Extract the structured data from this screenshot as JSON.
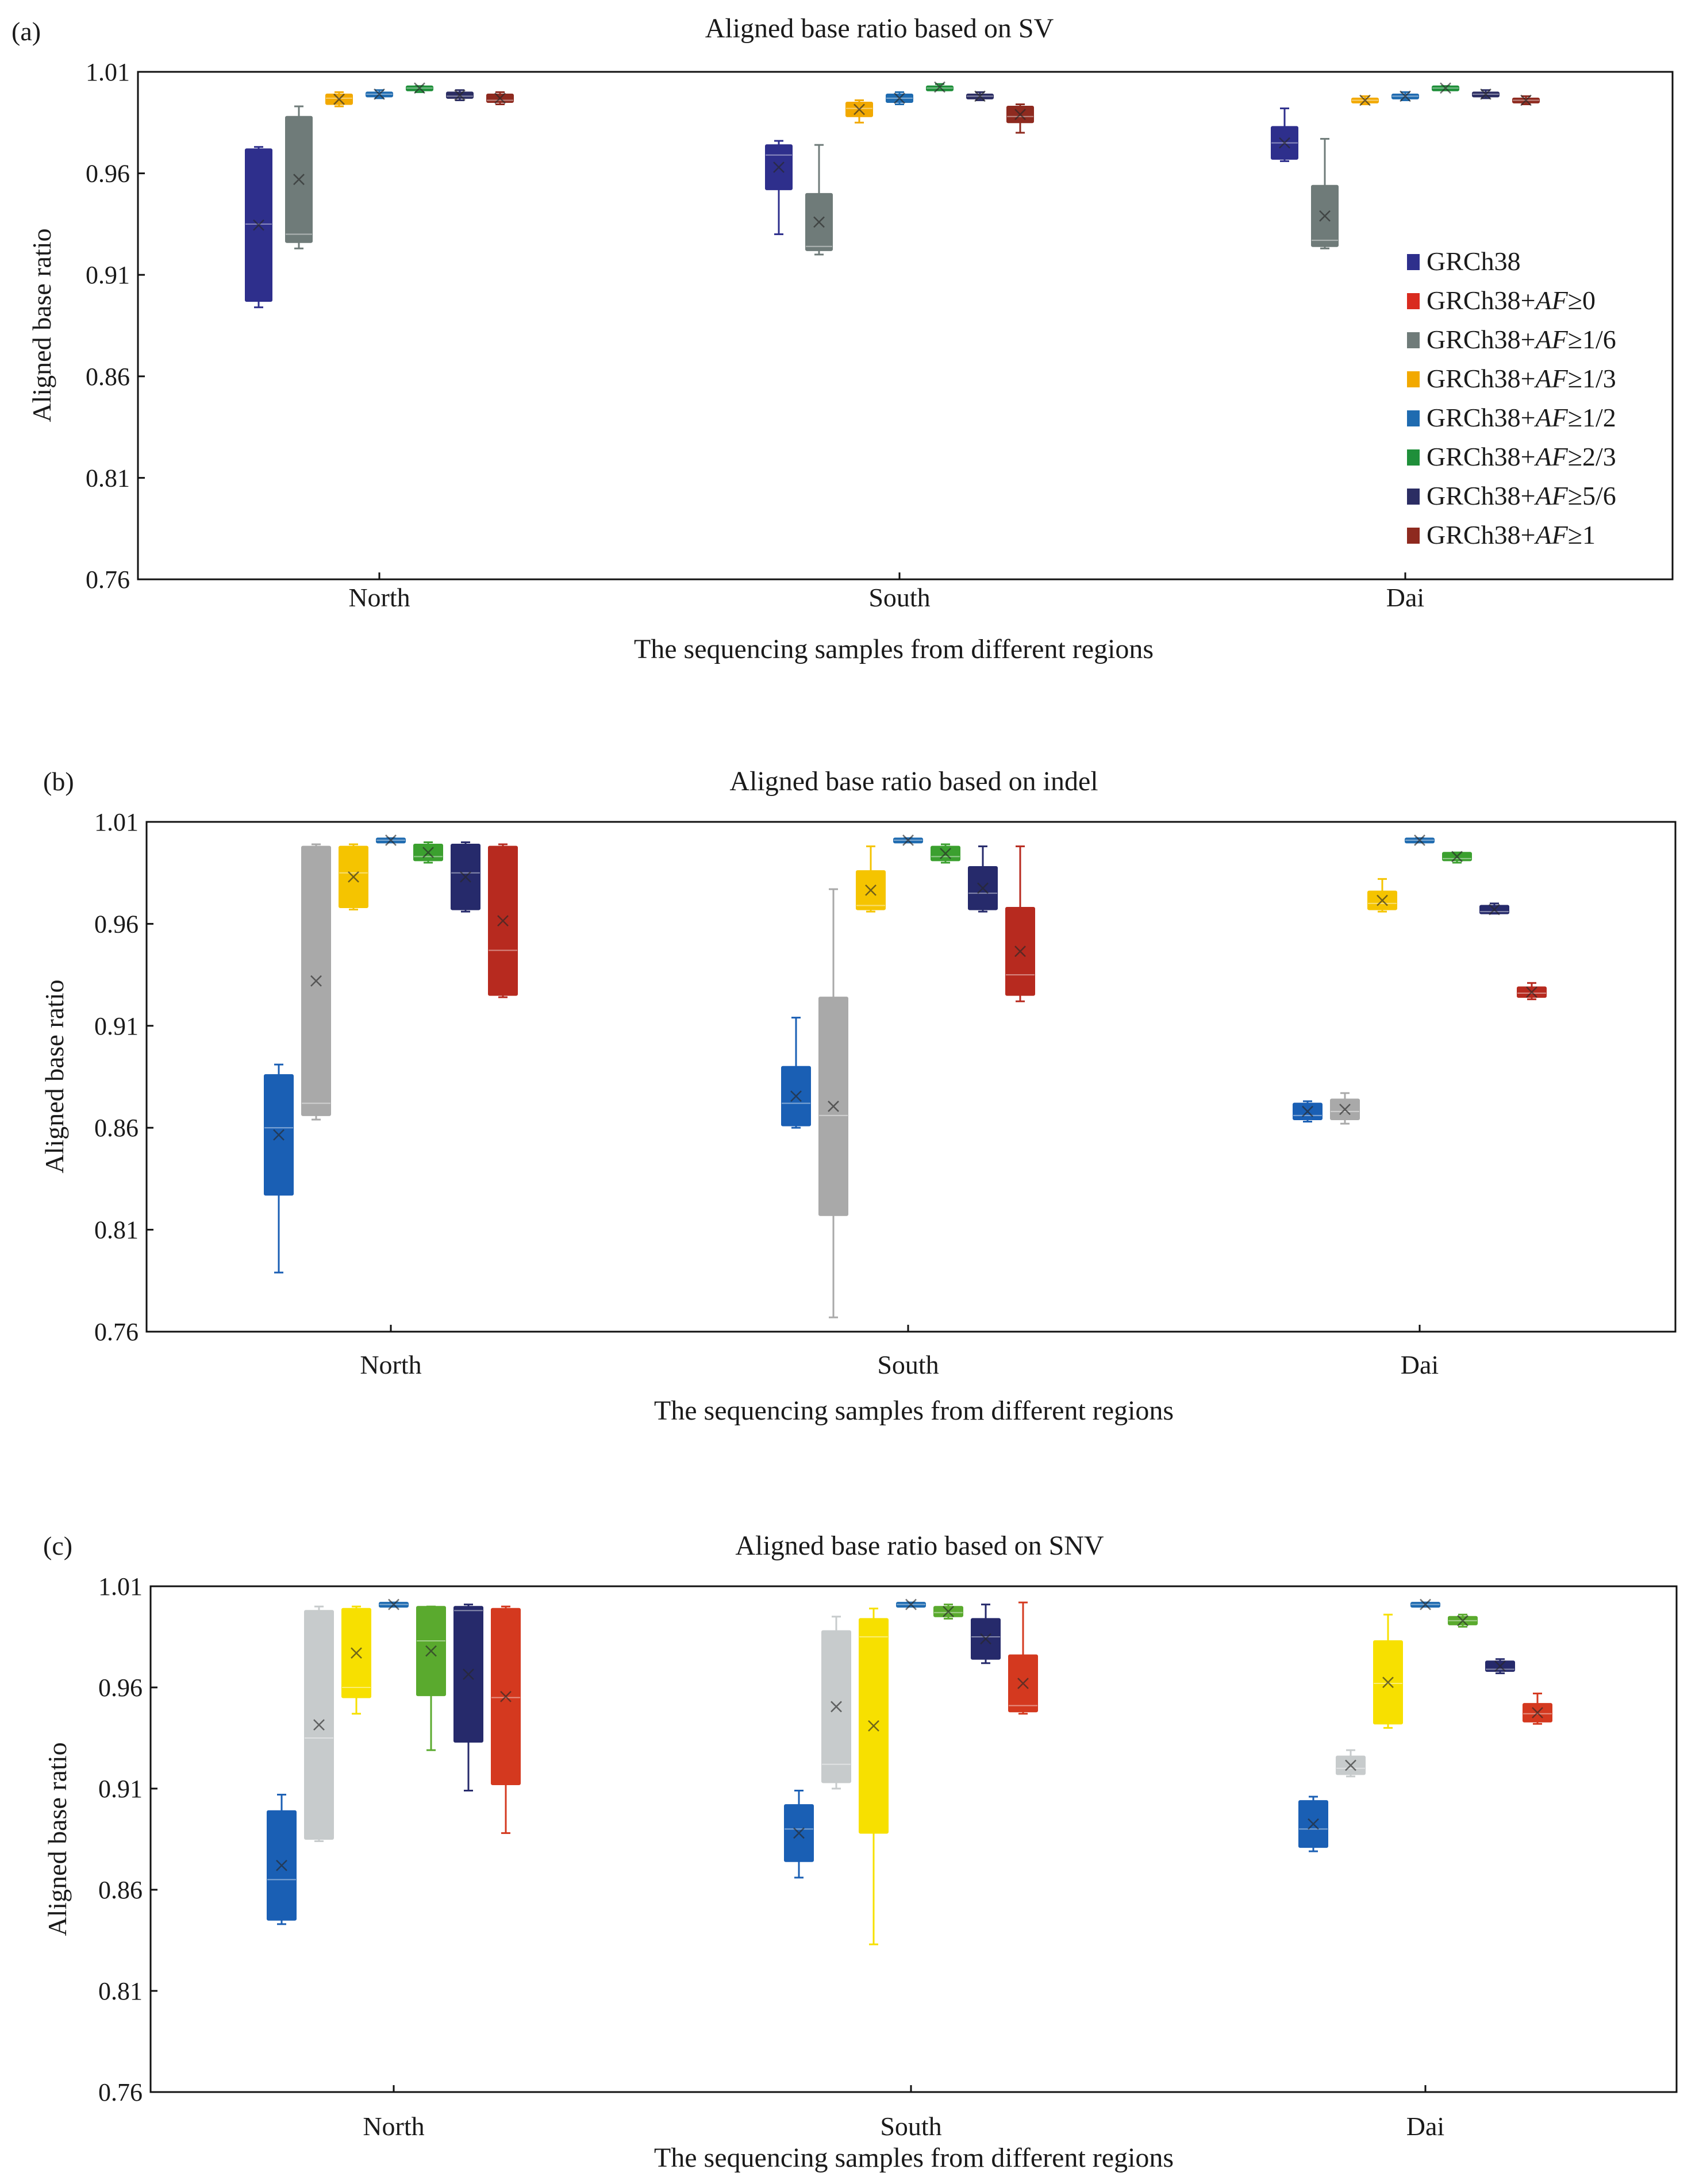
{
  "legend": [
    {
      "prefix": "GRCh38",
      "af": "",
      "thr": "",
      "color": "#2e2f8c"
    },
    {
      "prefix": "GRCh38+",
      "af": "AF",
      "thr": "≥0",
      "color": "#d92b1f"
    },
    {
      "prefix": "GRCh38+",
      "af": "AF",
      "thr": "≥1/6",
      "color": "#6f7b79"
    },
    {
      "prefix": "GRCh38+",
      "af": "AF",
      "thr": "≥1/3",
      "color": "#f2a900"
    },
    {
      "prefix": "GRCh38+",
      "af": "AF",
      "thr": "≥1/2",
      "color": "#1f6bb0"
    },
    {
      "prefix": "GRCh38+",
      "af": "AF",
      "thr": "≥2/3",
      "color": "#1f8f3a"
    },
    {
      "prefix": "GRCh38+",
      "af": "AF",
      "thr": "≥5/6",
      "color": "#2b2d63"
    },
    {
      "prefix": "GRCh38+",
      "af": "AF",
      "thr": "≥1",
      "color": "#8e2a1f"
    }
  ],
  "chart_data": [
    {
      "type": "box",
      "panel": "(a)",
      "title": "Aligned base ratio based on SV",
      "xlabel": "The sequencing samples from different regions",
      "ylabel": "Aligned base ratio",
      "ylim": [
        0.76,
        1.01
      ],
      "yticks": [
        "0.76",
        "0.81",
        "0.86",
        "0.91",
        "0.96",
        "1.01"
      ],
      "categories": [
        "North",
        "South",
        "Dai"
      ],
      "series": [
        {
          "name": "GRCh38",
          "color": "#2e2f8c",
          "boxes": [
            [
              0.894,
              0.897,
              0.935,
              0.972,
              0.973
            ],
            [
              0.93,
              0.952,
              0.969,
              0.974,
              0.976
            ],
            [
              0.966,
              0.967,
              0.975,
              0.983,
              0.992
            ]
          ]
        },
        {
          "name": "GRCh38+AF≥1/6",
          "color": "#6f7b79",
          "boxes": [
            [
              0.923,
              0.926,
              0.93,
              0.988,
              0.993
            ],
            [
              0.92,
              0.922,
              0.924,
              0.95,
              0.974
            ],
            [
              0.923,
              0.924,
              0.927,
              0.954,
              0.977
            ]
          ]
        },
        {
          "name": "GRCh38+AF≥1/3",
          "color": "#f2a900",
          "boxes": [
            [
              0.993,
              0.994,
              0.997,
              0.999,
              1.0
            ],
            [
              0.985,
              0.988,
              0.992,
              0.995,
              0.996
            ],
            [
              0.994,
              0.995,
              0.996,
              0.997,
              0.998
            ]
          ]
        },
        {
          "name": "GRCh38+AF≥1/2",
          "color": "#1f6bb0",
          "boxes": [
            [
              0.997,
              0.998,
              0.999,
              1.0,
              1.001
            ],
            [
              0.994,
              0.995,
              0.997,
              0.999,
              1.0
            ],
            [
              0.996,
              0.997,
              0.998,
              0.999,
              1.0
            ]
          ]
        },
        {
          "name": "GRCh38+AF≥2/3",
          "color": "#1f8f3a",
          "boxes": [
            [
              1.0,
              1.001,
              1.002,
              1.003,
              1.003
            ],
            [
              1.001,
              1.002,
              1.002,
              1.003,
              1.004
            ],
            [
              1.001,
              1.001,
              1.002,
              1.003,
              1.003
            ]
          ]
        },
        {
          "name": "GRCh38+AF≥5/6",
          "color": "#2b2d63",
          "boxes": [
            [
              0.996,
              0.997,
              0.998,
              1.0,
              1.001
            ],
            [
              0.996,
              0.997,
              0.998,
              0.999,
              1.0
            ],
            [
              0.997,
              0.998,
              0.999,
              1.0,
              1.001
            ]
          ]
        },
        {
          "name": "GRCh38+AF≥1",
          "color": "#8e2a1f",
          "boxes": [
            [
              0.994,
              0.995,
              0.996,
              0.999,
              1.0
            ],
            [
              0.98,
              0.985,
              0.988,
              0.993,
              0.994
            ],
            [
              0.994,
              0.995,
              0.996,
              0.997,
              0.998
            ]
          ]
        }
      ]
    },
    {
      "type": "box",
      "panel": "(b)",
      "title": "Aligned base ratio based on indel",
      "xlabel": "The sequencing samples from different regions",
      "ylabel": "Aligned base ratio",
      "ylim": [
        0.76,
        1.01
      ],
      "yticks": [
        "0.76",
        "0.81",
        "0.86",
        "0.91",
        "0.96",
        "1.01"
      ],
      "categories": [
        "North",
        "South",
        "Dai"
      ],
      "series": [
        {
          "name": "GRCh38",
          "color": "#1a5fb4",
          "boxes": [
            [
              0.789,
              0.827,
              0.86,
              0.886,
              0.891
            ],
            [
              0.86,
              0.861,
              0.872,
              0.89,
              0.914
            ],
            [
              0.863,
              0.864,
              0.866,
              0.872,
              0.873
            ]
          ]
        },
        {
          "name": "GRCh38+AF≥1/6",
          "color": "#a9a9a9",
          "boxes": [
            [
              0.864,
              0.866,
              0.872,
              0.998,
              0.999
            ],
            [
              0.767,
              0.817,
              0.866,
              0.924,
              0.977
            ],
            [
              0.862,
              0.864,
              0.868,
              0.874,
              0.877
            ]
          ]
        },
        {
          "name": "GRCh38+AF≥1/3",
          "color": "#f5c400",
          "boxes": [
            [
              0.967,
              0.968,
              0.985,
              0.998,
              0.999
            ],
            [
              0.966,
              0.967,
              0.969,
              0.986,
              0.998
            ],
            [
              0.966,
              0.967,
              0.97,
              0.976,
              0.982
            ]
          ]
        },
        {
          "name": "GRCh38+AF≥1/2",
          "color": "#1f6bb0",
          "boxes": [
            [
              1.0,
              1.0,
              1.001,
              1.002,
              1.002
            ],
            [
              1.0,
              1.0,
              1.001,
              1.002,
              1.002
            ],
            [
              1.0,
              1.0,
              1.001,
              1.002,
              1.002
            ]
          ]
        },
        {
          "name": "GRCh38+AF≥2/3",
          "color": "#3ba02f",
          "boxes": [
            [
              0.99,
              0.991,
              0.993,
              0.999,
              1.0
            ],
            [
              0.99,
              0.991,
              0.993,
              0.998,
              0.999
            ],
            [
              0.99,
              0.991,
              0.992,
              0.995,
              0.995
            ]
          ]
        },
        {
          "name": "GRCh38+AF≥5/6",
          "color": "#262a6b",
          "boxes": [
            [
              0.966,
              0.967,
              0.985,
              0.999,
              1.0
            ],
            [
              0.966,
              0.967,
              0.975,
              0.988,
              0.998
            ],
            [
              0.965,
              0.965,
              0.966,
              0.969,
              0.97
            ]
          ]
        },
        {
          "name": "GRCh38+AF≥1",
          "color": "#b72a1f",
          "boxes": [
            [
              0.924,
              0.925,
              0.947,
              0.998,
              0.999
            ],
            [
              0.922,
              0.925,
              0.935,
              0.968,
              0.998
            ],
            [
              0.923,
              0.924,
              0.926,
              0.929,
              0.931
            ]
          ]
        }
      ]
    },
    {
      "type": "box",
      "panel": "(c)",
      "title": "Aligned base ratio based on SNV",
      "xlabel": "The sequencing samples from different regions",
      "ylabel": "Aligned base ratio",
      "ylim": [
        0.76,
        1.01
      ],
      "yticks": [
        "0.76",
        "0.81",
        "0.86",
        "0.91",
        "0.96",
        "1.01"
      ],
      "categories": [
        "North",
        "South",
        "Dai"
      ],
      "series": [
        {
          "name": "GRCh38",
          "color": "#1a5fb4",
          "boxes": [
            [
              0.843,
              0.845,
              0.865,
              0.899,
              0.907
            ],
            [
              0.866,
              0.874,
              0.89,
              0.902,
              0.909
            ],
            [
              0.879,
              0.881,
              0.89,
              0.904,
              0.906
            ]
          ]
        },
        {
          "name": "GRCh38+AF≥1/6",
          "color": "#c7cbcc",
          "boxes": [
            [
              0.884,
              0.885,
              0.935,
              0.998,
              1.0
            ],
            [
              0.91,
              0.913,
              0.922,
              0.988,
              0.995
            ],
            [
              0.916,
              0.917,
              0.92,
              0.926,
              0.929
            ]
          ]
        },
        {
          "name": "GRCh38+AF≥1/3",
          "color": "#f7e000",
          "boxes": [
            [
              0.947,
              0.955,
              0.96,
              0.999,
              1.0
            ],
            [
              0.833,
              0.888,
              0.985,
              0.994,
              0.999
            ],
            [
              0.94,
              0.942,
              0.962,
              0.983,
              0.996
            ]
          ]
        },
        {
          "name": "GRCh38+AF≥1/2",
          "color": "#1f6bb0",
          "boxes": [
            [
              1.0,
              1.0,
              1.001,
              1.002,
              1.002
            ],
            [
              1.0,
              1.0,
              1.001,
              1.002,
              1.002
            ],
            [
              1.0,
              1.0,
              1.001,
              1.002,
              1.002
            ]
          ]
        },
        {
          "name": "GRCh38+AF≥2/3",
          "color": "#5aaa2e",
          "boxes": [
            [
              0.929,
              0.956,
              0.983,
              1.0,
              1.0
            ],
            [
              0.994,
              0.995,
              0.997,
              1.0,
              1.001
            ],
            [
              0.99,
              0.991,
              0.993,
              0.995,
              0.996
            ]
          ]
        },
        {
          "name": "GRCh38+AF≥5/6",
          "color": "#262a6b",
          "boxes": [
            [
              0.909,
              0.933,
              0.998,
              1.0,
              1.001
            ],
            [
              0.972,
              0.974,
              0.985,
              0.994,
              1.001
            ],
            [
              0.967,
              0.968,
              0.969,
              0.973,
              0.974
            ]
          ]
        },
        {
          "name": "GRCh38+AF≥1",
          "color": "#d4391f",
          "boxes": [
            [
              0.888,
              0.912,
              0.955,
              0.999,
              1.0
            ],
            [
              0.947,
              0.948,
              0.951,
              0.976,
              1.002
            ],
            [
              0.942,
              0.943,
              0.947,
              0.952,
              0.957
            ]
          ]
        }
      ]
    }
  ]
}
